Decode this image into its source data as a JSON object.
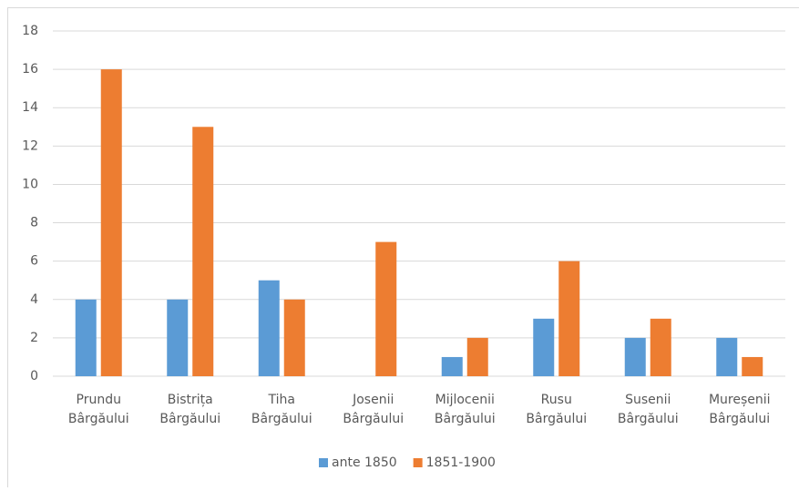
{
  "chart_data": {
    "type": "bar",
    "categories": [
      "Prundu Bârgăului",
      "Bistrița Bârgăului",
      "Tiha Bârgăului",
      "Josenii Bârgăului",
      "Mijlocenii Bârgăului",
      "Rusu Bârgăului",
      "Susenii Bârgăului",
      "Mureșenii Bârgăului"
    ],
    "series": [
      {
        "name": "ante 1850",
        "color": "#5b9bd5",
        "values": [
          4,
          4,
          5,
          0,
          1,
          3,
          2,
          2
        ]
      },
      {
        "name": "1851-1900",
        "color": "#ed7d31",
        "values": [
          16,
          13,
          4,
          7,
          2,
          6,
          3,
          1
        ]
      }
    ],
    "ylim": [
      0,
      18
    ],
    "yticks": [
      0,
      2,
      4,
      6,
      8,
      10,
      12,
      14,
      16,
      18
    ],
    "grid": true,
    "legend": "bottom"
  }
}
